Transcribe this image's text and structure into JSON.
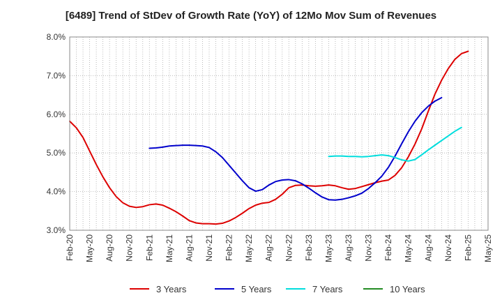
{
  "chart_data": {
    "type": "line",
    "title": "[6489]  Trend of StDev of Growth Rate (YoY) of 12Mo Mov Sum of Revenues",
    "xlabel": "",
    "ylabel": "",
    "ylim": [
      3.0,
      8.0
    ],
    "yticks": [
      3.0,
      4.0,
      5.0,
      6.0,
      7.0,
      8.0
    ],
    "ytick_labels": [
      "3.0%",
      "4.0%",
      "5.0%",
      "6.0%",
      "7.0%",
      "8.0%"
    ],
    "x_start": "Feb-20",
    "xtick_labels": [
      "Feb-20",
      "May-20",
      "Aug-20",
      "Nov-20",
      "Feb-21",
      "May-21",
      "Aug-21",
      "Nov-21",
      "Feb-22",
      "May-22",
      "Aug-22",
      "Nov-22",
      "Feb-23",
      "May-23",
      "Aug-23",
      "Nov-23",
      "Feb-24",
      "May-24",
      "Aug-24",
      "Nov-24",
      "Feb-25",
      "May-25"
    ],
    "xlim_months": [
      0,
      63
    ],
    "grid": true,
    "legend_position": "bottom",
    "series": [
      {
        "name": "3 Years",
        "color": "#dd0000",
        "start_month": 0,
        "values": [
          5.82,
          5.65,
          5.4,
          5.05,
          4.7,
          4.38,
          4.1,
          3.87,
          3.71,
          3.62,
          3.59,
          3.61,
          3.66,
          3.68,
          3.65,
          3.57,
          3.48,
          3.37,
          3.25,
          3.19,
          3.17,
          3.17,
          3.16,
          3.18,
          3.24,
          3.33,
          3.44,
          3.56,
          3.65,
          3.7,
          3.72,
          3.8,
          3.93,
          4.1,
          4.16,
          4.17,
          4.15,
          4.14,
          4.15,
          4.17,
          4.15,
          4.1,
          4.06,
          4.08,
          4.13,
          4.18,
          4.23,
          4.27,
          4.3,
          4.42,
          4.62,
          4.9,
          5.23,
          5.62,
          6.08,
          6.52,
          6.88,
          7.18,
          7.42,
          7.57,
          7.63
        ]
      },
      {
        "name": "5 Years",
        "color": "#0000cc",
        "start_month": 12,
        "values": [
          5.12,
          5.13,
          5.15,
          5.18,
          5.19,
          5.2,
          5.2,
          5.19,
          5.18,
          5.14,
          5.03,
          4.88,
          4.68,
          4.48,
          4.28,
          4.1,
          4.01,
          4.05,
          4.17,
          4.26,
          4.3,
          4.31,
          4.28,
          4.2,
          4.09,
          3.97,
          3.86,
          3.79,
          3.78,
          3.8,
          3.84,
          3.89,
          3.96,
          4.08,
          4.23,
          4.4,
          4.63,
          4.92,
          5.24,
          5.55,
          5.82,
          6.04,
          6.21,
          6.34,
          6.43
        ]
      },
      {
        "name": "7 Years",
        "color": "#00dddd",
        "start_month": 39,
        "values": [
          4.91,
          4.92,
          4.92,
          4.91,
          4.91,
          4.9,
          4.91,
          4.93,
          4.95,
          4.93,
          4.88,
          4.82,
          4.79,
          4.83,
          4.95,
          5.08,
          5.2,
          5.32,
          5.44,
          5.56,
          5.66
        ]
      },
      {
        "name": "10 Years",
        "color": "#228B22",
        "start_month": 0,
        "values": []
      }
    ]
  }
}
